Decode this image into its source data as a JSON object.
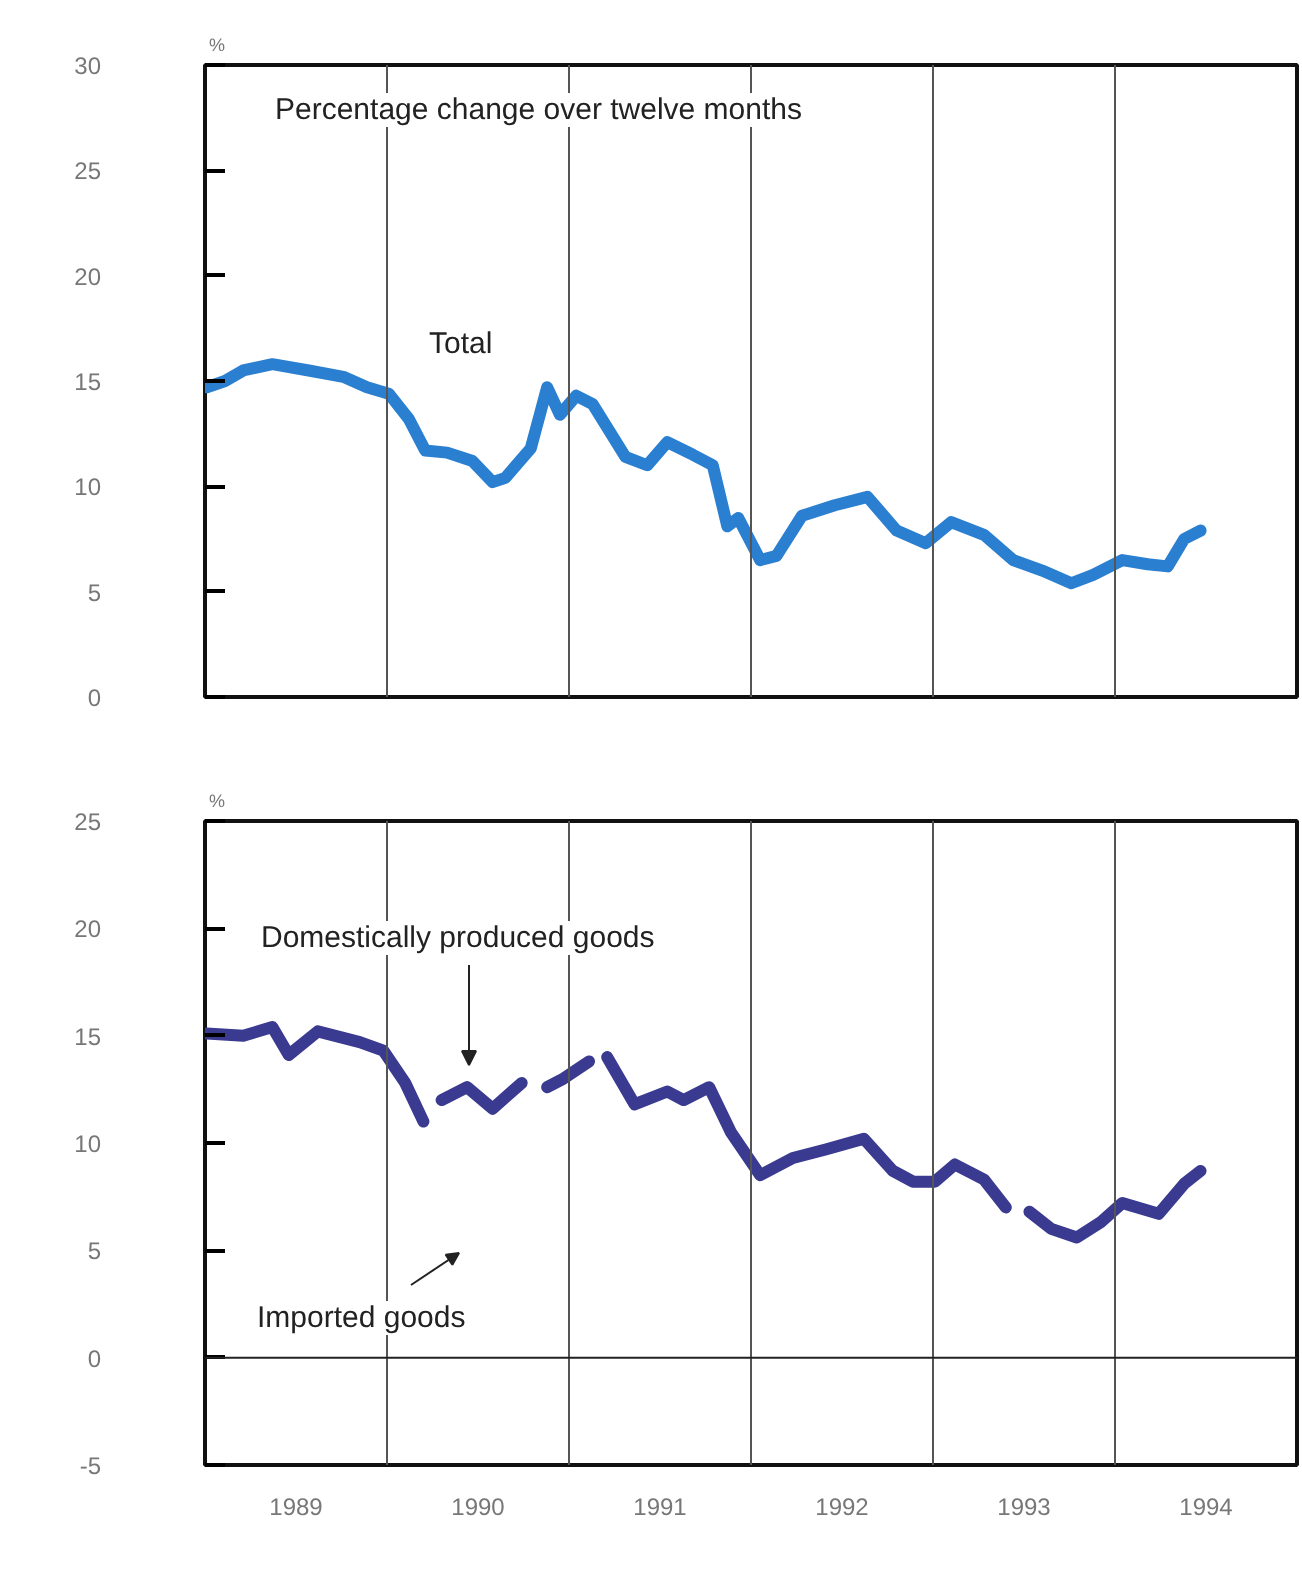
{
  "chart_data": [
    {
      "type": "line",
      "annotations": [
        "Percentage change over twelve months"
      ],
      "ylabel": "%",
      "xlim": [
        1989,
        1995
      ],
      "ylim": [
        0,
        30
      ],
      "yticks": [
        0,
        5,
        10,
        15,
        20,
        25,
        30
      ],
      "tick_labels": "y",
      "ref_lines": [
        {
          "axis": "x",
          "value": 1990,
          "color": "#555555"
        },
        {
          "axis": "x",
          "value": 1991,
          "color": "#555555"
        },
        {
          "axis": "x",
          "value": 1992,
          "color": "#555555"
        },
        {
          "axis": "x",
          "value": 1993,
          "color": "#555555"
        },
        {
          "axis": "x",
          "value": 1994,
          "color": "#555555"
        }
      ],
      "series": [
        {
          "name": "Total",
          "color": "#2a7fd0",
          "x": [
            1989.01,
            1989.11,
            1989.21,
            1989.37,
            1989.57,
            1989.76,
            1989.89,
            1990.01,
            1990.12,
            1990.21,
            1990.33,
            1990.47,
            1990.58,
            1990.65,
            1990.79,
            1990.88,
            1990.95,
            1991.04,
            1991.13,
            1991.31,
            1991.43,
            1991.54,
            1991.68,
            1991.79,
            1991.87,
            1991.93,
            1992.05,
            1992.14,
            1992.28,
            1992.46,
            1992.64,
            1992.8,
            1992.96,
            1993.1,
            1993.28,
            1993.44,
            1993.6,
            1993.76,
            1993.88,
            1994.04,
            1994.18,
            1994.29,
            1994.38,
            1994.47
          ],
          "values": [
            14.7,
            15.0,
            15.5,
            15.8,
            15.5,
            15.2,
            14.7,
            14.4,
            13.2,
            11.7,
            11.6,
            11.2,
            10.2,
            10.4,
            11.8,
            14.7,
            13.4,
            14.3,
            13.9,
            11.4,
            11.0,
            12.1,
            11.5,
            11.0,
            8.1,
            8.5,
            6.5,
            6.7,
            8.6,
            9.1,
            9.5,
            7.9,
            7.3,
            8.3,
            7.7,
            6.5,
            6.0,
            5.4,
            5.8,
            6.5,
            6.3,
            6.2,
            7.5,
            7.9
          ]
        }
      ]
    },
    {
      "type": "line",
      "annotations": [
        "Imported goods"
      ],
      "ylabel": "%",
      "xlim": [
        1989,
        1995
      ],
      "ylim": [
        -5,
        25
      ],
      "yticks": [
        -5,
        0,
        5,
        10,
        15,
        20,
        25
      ],
      "xticks": [
        {
          "value": 1989.5,
          "label": "1989"
        },
        {
          "value": 1990.5,
          "label": "1990"
        },
        {
          "value": 1991.5,
          "label": "1991"
        },
        {
          "value": 1992.5,
          "label": "1992"
        },
        {
          "value": 1993.5,
          "label": "1993"
        },
        {
          "value": 1994.5,
          "label": "1994"
        }
      ],
      "ref_lines": [
        {
          "axis": "x",
          "value": 1990,
          "color": "#555555"
        },
        {
          "axis": "x",
          "value": 1991,
          "color": "#555555"
        },
        {
          "axis": "x",
          "value": 1992,
          "color": "#555555"
        },
        {
          "axis": "x",
          "value": 1993,
          "color": "#555555"
        },
        {
          "axis": "x",
          "value": 1994,
          "color": "#555555"
        },
        {
          "axis": "y",
          "value": 0,
          "color": "#222222"
        }
      ],
      "series": [
        {
          "name": "Domestically produced goods",
          "color": "#3a3a90",
          "x": [
            1989.01,
            1989.21,
            1989.37,
            1989.46,
            1989.62,
            1989.85,
            1989.98,
            1990.1,
            1990.2,
            1990.25,
            1990.3,
            1990.44,
            1990.58,
            1990.74,
            1990.81,
            1990.88,
            1990.97,
            1991.11,
            1991.16,
            1991.21,
            1991.36,
            1991.54,
            1991.63,
            1991.77,
            1991.89,
            1992.05,
            1992.23,
            1992.41,
            1992.62,
            1992.78,
            1992.89,
            1993.01,
            1993.12,
            1993.28,
            1993.4,
            1993.47,
            1993.53,
            1993.65,
            1993.79,
            1993.92,
            1994.04,
            1994.24,
            1994.38,
            1994.47
          ],
          "values": [
            15.1,
            15.0,
            15.4,
            14.1,
            15.2,
            14.7,
            14.3,
            12.8,
            11.0,
            null,
            12.0,
            12.6,
            11.6,
            12.8,
            null,
            12.6,
            13.0,
            13.8,
            null,
            14.0,
            11.8,
            12.4,
            12.0,
            12.6,
            10.5,
            8.5,
            9.3,
            9.7,
            10.2,
            8.7,
            8.2,
            8.2,
            9.0,
            8.3,
            7.0,
            null,
            6.8,
            6.0,
            5.6,
            6.3,
            7.2,
            6.7,
            8.1,
            8.7
          ]
        }
      ]
    }
  ]
}
